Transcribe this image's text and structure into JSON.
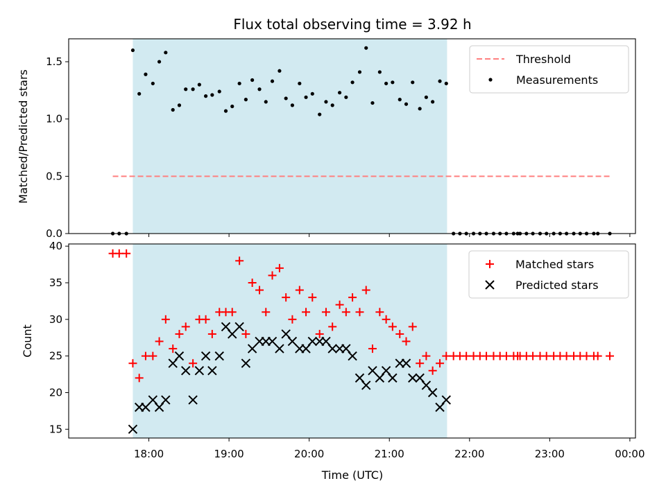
{
  "chart_data": {
    "title": "Flux total observing time = 3.92 h",
    "xlabel": "Time (UTC)",
    "x_ticks": [
      "18:00",
      "19:00",
      "20:00",
      "21:00",
      "22:00",
      "23:00",
      "00:00"
    ],
    "x_range_hours": [
      17.0,
      24.07
    ],
    "shaded_interval_hours": [
      17.8,
      21.72
    ],
    "shade_color": "#add8e6",
    "panels": [
      {
        "type": "scatter",
        "ylabel": "Matched/Predicted stars",
        "ylim": [
          0,
          1.7
        ],
        "y_ticks": [
          0.0,
          0.5,
          1.0,
          1.5
        ],
        "y_tick_labels": [
          "0.0",
          "0.5",
          "1.0",
          "1.5"
        ],
        "legend_position": "top-right",
        "threshold": {
          "name": "Threshold",
          "value": 0.5,
          "x_start": 17.55,
          "x_end": 23.75,
          "color": "#ff7f7f"
        },
        "series": [
          {
            "name": "Measurements",
            "marker": "dot",
            "color": "#000000",
            "points": [
              [
                17.55,
                0
              ],
              [
                17.63,
                0
              ],
              [
                17.72,
                0
              ],
              [
                17.8,
                1.6
              ],
              [
                17.88,
                1.22
              ],
              [
                17.96,
                1.39
              ],
              [
                18.05,
                1.31
              ],
              [
                18.13,
                1.5
              ],
              [
                18.21,
                1.58
              ],
              [
                18.3,
                1.08
              ],
              [
                18.38,
                1.12
              ],
              [
                18.46,
                1.26
              ],
              [
                18.55,
                1.26
              ],
              [
                18.63,
                1.3
              ],
              [
                18.71,
                1.2
              ],
              [
                18.79,
                1.21
              ],
              [
                18.88,
                1.24
              ],
              [
                18.96,
                1.07
              ],
              [
                19.04,
                1.11
              ],
              [
                19.13,
                1.31
              ],
              [
                19.21,
                1.17
              ],
              [
                19.29,
                1.34
              ],
              [
                19.38,
                1.26
              ],
              [
                19.46,
                1.15
              ],
              [
                19.54,
                1.33
              ],
              [
                19.63,
                1.42
              ],
              [
                19.71,
                1.18
              ],
              [
                19.79,
                1.12
              ],
              [
                19.88,
                1.31
              ],
              [
                19.96,
                1.19
              ],
              [
                20.04,
                1.22
              ],
              [
                20.13,
                1.04
              ],
              [
                20.21,
                1.15
              ],
              [
                20.29,
                1.12
              ],
              [
                20.38,
                1.23
              ],
              [
                20.46,
                1.19
              ],
              [
                20.54,
                1.32
              ],
              [
                20.63,
                1.41
              ],
              [
                20.71,
                1.62
              ],
              [
                20.79,
                1.14
              ],
              [
                20.88,
                1.41
              ],
              [
                20.96,
                1.31
              ],
              [
                21.04,
                1.32
              ],
              [
                21.13,
                1.17
              ],
              [
                21.21,
                1.13
              ],
              [
                21.29,
                1.32
              ],
              [
                21.38,
                1.09
              ],
              [
                21.46,
                1.19
              ],
              [
                21.54,
                1.15
              ],
              [
                21.63,
                1.33
              ],
              [
                21.71,
                1.31
              ],
              [
                21.8,
                0
              ],
              [
                21.88,
                0
              ],
              [
                21.96,
                0
              ],
              [
                22.05,
                0
              ],
              [
                22.13,
                0
              ],
              [
                22.21,
                0
              ],
              [
                22.3,
                0
              ],
              [
                22.38,
                0
              ],
              [
                22.46,
                0
              ],
              [
                22.55,
                0
              ],
              [
                22.6,
                0
              ],
              [
                22.63,
                0
              ],
              [
                22.71,
                0
              ],
              [
                22.79,
                0
              ],
              [
                22.88,
                0
              ],
              [
                22.96,
                0
              ],
              [
                23.05,
                0
              ],
              [
                23.13,
                0
              ],
              [
                23.21,
                0
              ],
              [
                23.3,
                0
              ],
              [
                23.38,
                0
              ],
              [
                23.46,
                0
              ],
              [
                23.55,
                0
              ],
              [
                23.6,
                0
              ],
              [
                23.75,
                0
              ]
            ]
          }
        ]
      },
      {
        "type": "scatter",
        "ylabel": "Count",
        "ylim": [
          13.8,
          40.3
        ],
        "y_ticks": [
          15,
          20,
          25,
          30,
          35,
          40
        ],
        "y_tick_labels": [
          "15",
          "20",
          "25",
          "30",
          "35",
          "40"
        ],
        "legend_position": "top-right",
        "series": [
          {
            "name": "Matched stars",
            "marker": "plus",
            "color": "#ff0000",
            "points": [
              [
                17.55,
                39
              ],
              [
                17.63,
                39
              ],
              [
                17.72,
                39
              ],
              [
                17.8,
                24
              ],
              [
                17.88,
                22
              ],
              [
                17.96,
                25
              ],
              [
                18.05,
                25
              ],
              [
                18.13,
                27
              ],
              [
                18.21,
                30
              ],
              [
                18.3,
                26
              ],
              [
                18.38,
                28
              ],
              [
                18.46,
                29
              ],
              [
                18.55,
                24
              ],
              [
                18.63,
                30
              ],
              [
                18.71,
                30
              ],
              [
                18.79,
                28
              ],
              [
                18.88,
                31
              ],
              [
                18.96,
                31
              ],
              [
                19.04,
                31
              ],
              [
                19.13,
                38
              ],
              [
                19.21,
                28
              ],
              [
                19.29,
                35
              ],
              [
                19.38,
                34
              ],
              [
                19.46,
                31
              ],
              [
                19.54,
                36
              ],
              [
                19.63,
                37
              ],
              [
                19.71,
                33
              ],
              [
                19.79,
                30
              ],
              [
                19.88,
                34
              ],
              [
                19.96,
                31
              ],
              [
                20.04,
                33
              ],
              [
                20.13,
                28
              ],
              [
                20.21,
                31
              ],
              [
                20.29,
                29
              ],
              [
                20.38,
                32
              ],
              [
                20.46,
                31
              ],
              [
                20.54,
                33
              ],
              [
                20.63,
                31
              ],
              [
                20.71,
                34
              ],
              [
                20.79,
                26
              ],
              [
                20.88,
                31
              ],
              [
                20.96,
                30
              ],
              [
                21.04,
                29
              ],
              [
                21.13,
                28
              ],
              [
                21.21,
                27
              ],
              [
                21.29,
                29
              ],
              [
                21.38,
                24
              ],
              [
                21.46,
                25
              ],
              [
                21.54,
                23
              ],
              [
                21.63,
                24
              ],
              [
                21.71,
                25
              ],
              [
                21.8,
                25
              ],
              [
                21.88,
                25
              ],
              [
                21.96,
                25
              ],
              [
                22.05,
                25
              ],
              [
                22.13,
                25
              ],
              [
                22.21,
                25
              ],
              [
                22.3,
                25
              ],
              [
                22.38,
                25
              ],
              [
                22.46,
                25
              ],
              [
                22.55,
                25
              ],
              [
                22.6,
                25
              ],
              [
                22.63,
                25
              ],
              [
                22.71,
                25
              ],
              [
                22.79,
                25
              ],
              [
                22.88,
                25
              ],
              [
                22.96,
                25
              ],
              [
                23.05,
                25
              ],
              [
                23.13,
                25
              ],
              [
                23.21,
                25
              ],
              [
                23.3,
                25
              ],
              [
                23.38,
                25
              ],
              [
                23.46,
                25
              ],
              [
                23.55,
                25
              ],
              [
                23.6,
                25
              ],
              [
                23.75,
                25
              ]
            ]
          },
          {
            "name": "Predicted stars",
            "marker": "x",
            "color": "#000000",
            "points": [
              [
                17.8,
                15
              ],
              [
                17.88,
                18
              ],
              [
                17.96,
                18
              ],
              [
                18.05,
                19
              ],
              [
                18.13,
                18
              ],
              [
                18.21,
                19
              ],
              [
                18.3,
                24
              ],
              [
                18.38,
                25
              ],
              [
                18.46,
                23
              ],
              [
                18.55,
                19
              ],
              [
                18.63,
                23
              ],
              [
                18.71,
                25
              ],
              [
                18.79,
                23
              ],
              [
                18.88,
                25
              ],
              [
                18.96,
                29
              ],
              [
                19.04,
                28
              ],
              [
                19.13,
                29
              ],
              [
                19.21,
                24
              ],
              [
                19.29,
                26
              ],
              [
                19.38,
                27
              ],
              [
                19.46,
                27
              ],
              [
                19.54,
                27
              ],
              [
                19.63,
                26
              ],
              [
                19.71,
                28
              ],
              [
                19.79,
                27
              ],
              [
                19.88,
                26
              ],
              [
                19.96,
                26
              ],
              [
                20.04,
                27
              ],
              [
                20.13,
                27
              ],
              [
                20.21,
                27
              ],
              [
                20.29,
                26
              ],
              [
                20.38,
                26
              ],
              [
                20.46,
                26
              ],
              [
                20.54,
                25
              ],
              [
                20.63,
                22
              ],
              [
                20.71,
                21
              ],
              [
                20.79,
                23
              ],
              [
                20.88,
                22
              ],
              [
                20.96,
                23
              ],
              [
                21.04,
                22
              ],
              [
                21.13,
                24
              ],
              [
                21.21,
                24
              ],
              [
                21.29,
                22
              ],
              [
                21.38,
                22
              ],
              [
                21.46,
                21
              ],
              [
                21.54,
                20
              ],
              [
                21.63,
                18
              ],
              [
                21.71,
                19
              ]
            ]
          }
        ]
      }
    ]
  }
}
